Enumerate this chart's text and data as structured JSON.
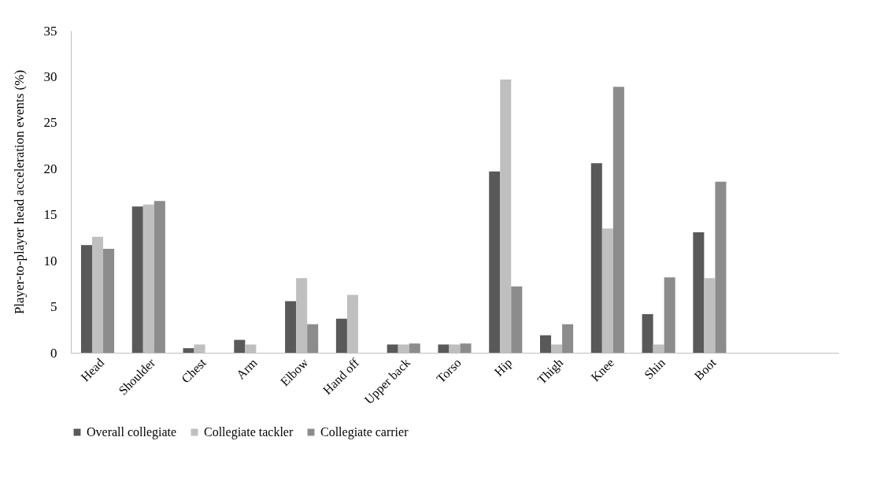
{
  "chart_data": {
    "type": "bar",
    "ylabel": "Player-to-player head acceleration events (%)",
    "categories": [
      "Head",
      "Shoulder",
      "Chest",
      "Arm",
      "Elbow",
      "Hand off",
      "Upper back",
      "Torso",
      "Hip",
      "Thigh",
      "Knee",
      "Shin",
      "Boot",
      null,
      null
    ],
    "series": [
      {
        "name": "Overall collegiate",
        "color": "#595959",
        "values": [
          11.7,
          15.9,
          0.5,
          1.4,
          5.6,
          3.7,
          0.9,
          0.9,
          19.7,
          1.9,
          20.6,
          4.2,
          13.1,
          null,
          null
        ]
      },
      {
        "name": "Collegiate tackler",
        "color": "#bfbfbf",
        "values": [
          12.6,
          16.1,
          0.9,
          0.9,
          8.1,
          6.3,
          0.9,
          0.9,
          29.7,
          0.9,
          13.5,
          0.9,
          8.1,
          null,
          null
        ]
      },
      {
        "name": "Collegiate carrier",
        "color": "#8c8c8c",
        "values": [
          11.3,
          16.5,
          null,
          null,
          3.1,
          null,
          1.0,
          1.0,
          7.2,
          3.1,
          28.9,
          8.2,
          18.6,
          null,
          null
        ]
      }
    ],
    "ylim": [
      0,
      35
    ],
    "yticks": [
      0,
      5,
      10,
      15,
      20,
      25,
      30,
      35
    ],
    "grid": false,
    "legend": "bottom"
  }
}
